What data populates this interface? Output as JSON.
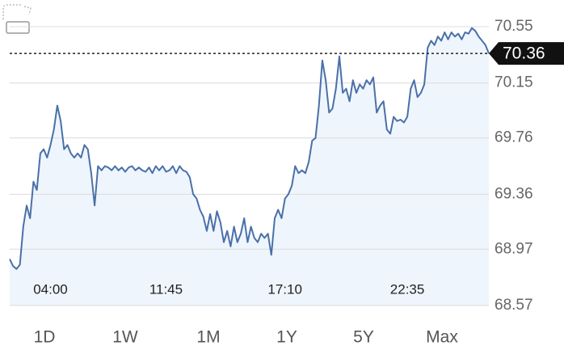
{
  "chart_data": {
    "type": "line",
    "series": [
      {
        "color": "#4a70a8",
        "values": [
          68.9,
          68.85,
          68.83,
          68.86,
          69.13,
          69.28,
          69.19,
          69.45,
          69.39,
          69.65,
          69.68,
          69.62,
          69.71,
          69.82,
          69.99,
          69.88,
          69.68,
          69.71,
          69.65,
          69.62,
          69.65,
          69.62,
          69.71,
          69.68,
          69.51,
          69.28,
          69.56,
          69.53,
          69.56,
          69.55,
          69.53,
          69.56,
          69.53,
          69.55,
          69.52,
          69.55,
          69.56,
          69.53,
          69.55,
          69.53,
          69.52,
          69.55,
          69.51,
          69.56,
          69.53,
          69.56,
          69.52,
          69.53,
          69.56,
          69.51,
          69.56,
          69.53,
          69.52,
          69.48,
          69.36,
          69.33,
          69.25,
          69.2,
          69.1,
          69.22,
          69.1,
          69.24,
          69.16,
          69.02,
          69.1,
          68.99,
          69.13,
          69.02,
          69.08,
          69.19,
          69.02,
          69.13,
          69.05,
          69.02,
          69.08,
          69.05,
          69.08,
          68.93,
          69.19,
          69.25,
          69.19,
          69.33,
          69.36,
          69.42,
          69.56,
          69.51,
          69.53,
          69.51,
          69.59,
          69.74,
          69.76,
          69.99,
          70.31,
          70.17,
          69.94,
          69.97,
          70.11,
          70.34,
          70.08,
          70.11,
          70.02,
          70.17,
          70.08,
          70.14,
          70.11,
          70.17,
          70.14,
          70.19,
          69.94,
          69.99,
          70.02,
          69.82,
          69.79,
          69.91,
          69.88,
          69.89,
          69.87,
          69.91,
          70.11,
          70.17,
          70.05,
          70.08,
          70.14,
          70.4,
          70.45,
          70.42,
          70.48,
          70.45,
          70.51,
          70.46,
          70.51,
          70.48,
          70.5,
          70.46,
          70.51,
          70.5,
          70.54,
          70.52,
          70.48,
          70.45,
          70.42,
          70.36
        ]
      }
    ],
    "xlim": [
      0,
      141
    ],
    "xticks": [
      {
        "value": 12,
        "label": "04:00"
      },
      {
        "value": 46,
        "label": "11:45"
      },
      {
        "value": 81,
        "label": "17:10"
      },
      {
        "value": 117,
        "label": "22:35"
      }
    ],
    "ylim": [
      68.57,
      70.55
    ],
    "yticks": [
      68.57,
      68.97,
      69.36,
      69.76,
      70.15,
      70.55
    ],
    "grid": true
  },
  "range_buttons": [
    "1D",
    "1W",
    "1M",
    "1Y",
    "5Y",
    "Max"
  ]
}
